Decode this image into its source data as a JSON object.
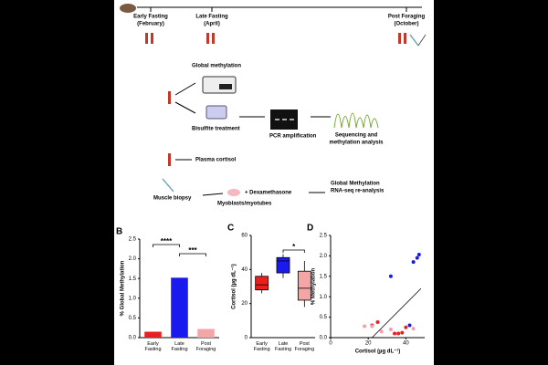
{
  "diagram": {
    "timeline": [
      "Early Fasting",
      "(February)",
      "Late Fasting",
      "(April)",
      "Post Foraging",
      "(October)"
    ],
    "steps": {
      "global": "Global methylation",
      "bisulfite": "Bisulfite treatment",
      "pcr": "PCR amplification",
      "seq1": "Sequencing and",
      "seq2": "methylation analysis",
      "cortisol": "Plasma cortisol",
      "biopsy": "Muscle biopsy",
      "myo": "Myoblasts/myotubes",
      "dex": "+ Dexamethasone",
      "rna1": "Global Methylation",
      "rna2": "RNA-seq re-analysis"
    }
  },
  "chart_data": [
    {
      "type": "bar",
      "label": "B",
      "ylabel": "% Global Methylation",
      "categories": [
        "Early Fasting",
        "Late Fasting",
        "Post Foraging"
      ],
      "values": [
        0.15,
        1.52,
        0.22
      ],
      "colors": [
        "#e82020",
        "#1a1aee",
        "#f4a6a6"
      ],
      "ylim": [
        0,
        2.5
      ],
      "yticks": [
        {
          "value": 0,
          "label": "0.0"
        },
        {
          "value": 0.5,
          "label": "0.5"
        },
        {
          "value": 1,
          "label": "1.0"
        },
        {
          "value": 1.5,
          "label": "1.5"
        },
        {
          "value": 2,
          "label": "2.0"
        },
        {
          "value": 2.5,
          "label": "2.5"
        }
      ],
      "annotations": [
        "****",
        "***"
      ]
    },
    {
      "type": "box",
      "label": "C",
      "ylabel": "Cortisol (µg dL⁻¹)",
      "categories": [
        "Early Fasting",
        "Late Fasting",
        "Post Foraging"
      ],
      "boxes": [
        {
          "min": 26,
          "q1": 28,
          "median": 31,
          "q3": 36,
          "max": 38
        },
        {
          "min": 35,
          "q1": 38,
          "median": 45,
          "q3": 47,
          "max": 49
        },
        {
          "min": 18,
          "q1": 22,
          "median": 29,
          "q3": 39,
          "max": 45
        }
      ],
      "colors": [
        "#e82020",
        "#1a1aee",
        "#f4a6a6"
      ],
      "ylim": [
        0,
        60
      ],
      "yticks": [
        0,
        20,
        40,
        60
      ],
      "annotations": [
        "*"
      ]
    },
    {
      "type": "scatter",
      "label": "D",
      "ylabel": "% Methylation",
      "xlabel": "Cortisol (µg dL⁻¹)",
      "xlim": [
        0,
        50
      ],
      "xticks": [
        0,
        20,
        40
      ],
      "ylim": [
        0,
        2.5
      ],
      "yticks": [
        {
          "value": 0,
          "label": "0.0"
        },
        {
          "value": 0.5,
          "label": "0.5"
        },
        {
          "value": 1,
          "label": "1.0"
        },
        {
          "value": 1.5,
          "label": "1.5"
        },
        {
          "value": 2,
          "label": "2.0"
        },
        {
          "value": 2.5,
          "label": "2.5"
        }
      ],
      "series": [
        {
          "color": "#1a1aee",
          "x": [
            32,
            44,
            46,
            47,
            42
          ],
          "values": [
            1.5,
            1.85,
            1.95,
            2.03,
            0.3
          ]
        },
        {
          "color": "#e82020",
          "x": [
            22,
            25,
            34,
            36,
            38,
            40
          ],
          "values": [
            0.3,
            0.38,
            0.1,
            0.1,
            0.12,
            0.25
          ]
        },
        {
          "color": "#f4a0a8",
          "x": [
            18,
            22,
            27,
            32,
            44
          ],
          "values": [
            0.28,
            0.28,
            0.15,
            0.2,
            0.22
          ]
        }
      ],
      "trendline": {
        "x": [
          22,
          48
        ],
        "values": [
          0,
          1.2
        ]
      }
    }
  ]
}
